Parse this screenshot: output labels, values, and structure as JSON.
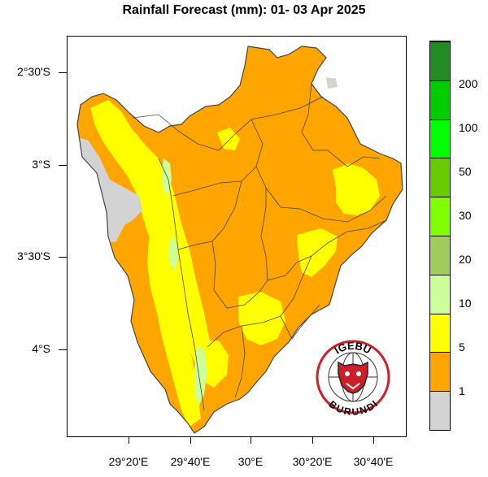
{
  "title": "Rainfall Forecast (mm): 01- 03 Apr  2025",
  "lat_labels": [
    "2°30'S",
    "3°S",
    "3°30'S",
    "4°S"
  ],
  "lon_labels": [
    "29°20'E",
    "29°40'E",
    "30°E",
    "30°20'E",
    "30°40'E"
  ],
  "legend": {
    "colors": [
      "#d3d3d3",
      "#ffa500",
      "#ffff00",
      "#ccff99",
      "#a1cd5f",
      "#7fff00",
      "#66cc00",
      "#00ff00",
      "#00cc00",
      "#228b22"
    ],
    "labels": [
      "1",
      "5",
      "10",
      "20",
      "30",
      "50",
      "100",
      "200"
    ]
  },
  "map_colors": {
    "outside": "#ffffff",
    "trace": "#d3d3d3",
    "light": "#ffa500",
    "moderate": "#ffff00",
    "heavy": "#ccff99",
    "lake": "#d3d3d3",
    "boundary": "#444444"
  },
  "logo": {
    "top_text": "IGEBU",
    "bottom_text": "BURUNDI",
    "ring_color": "#cc1f2a"
  }
}
